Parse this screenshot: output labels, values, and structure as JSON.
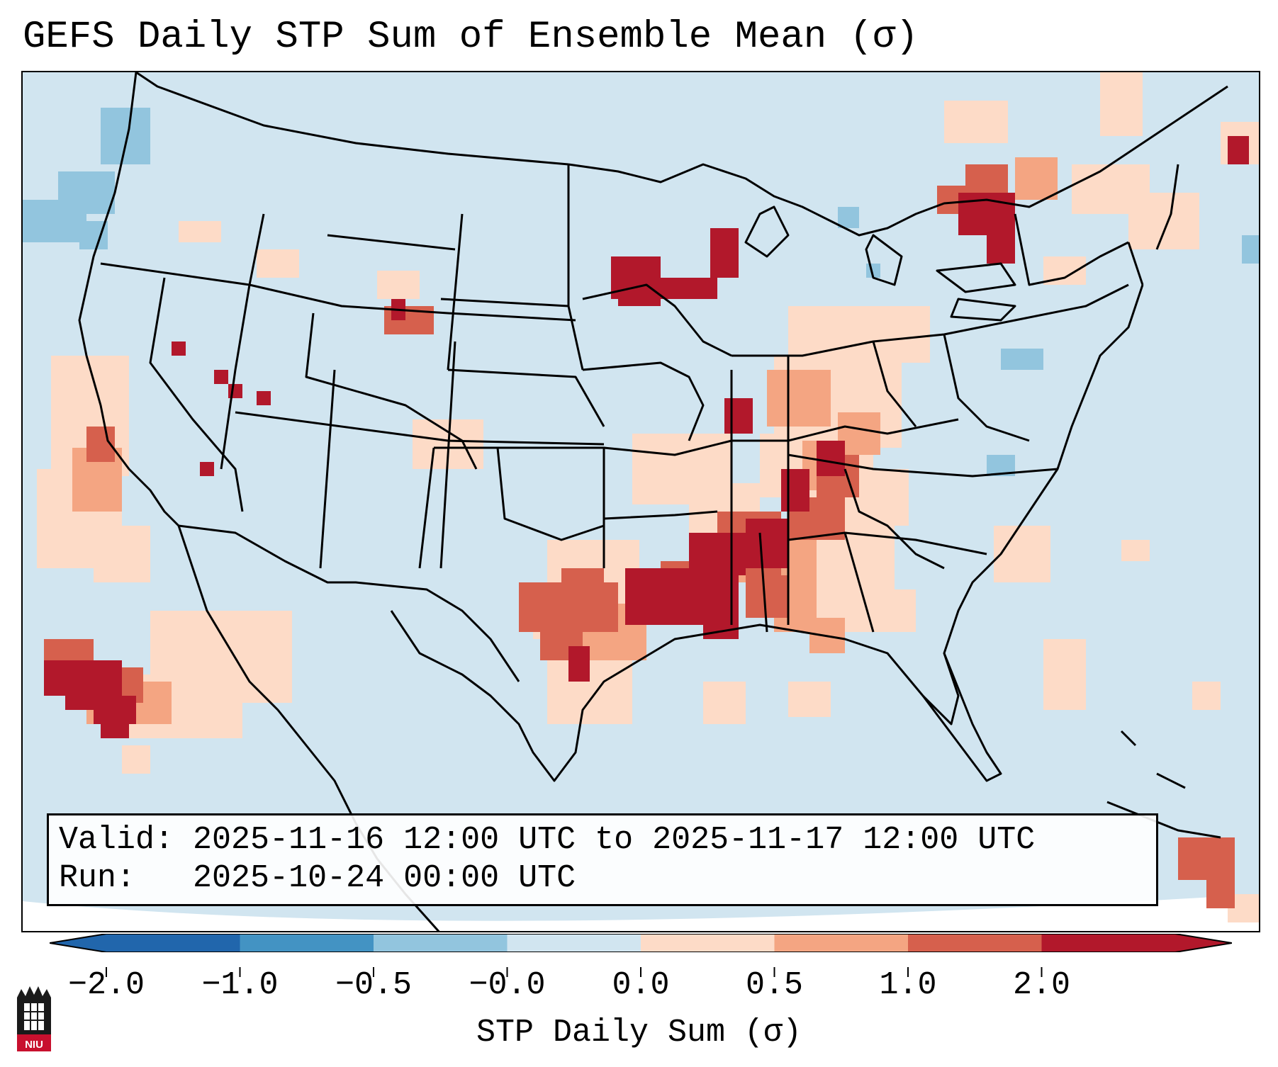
{
  "title": "GEFS Daily STP Sum of Ensemble Mean (σ)",
  "info": {
    "valid_label": "Valid:",
    "valid_value": "2025-11-16 12:00 UTC to 2025-11-17 12:00 UTC",
    "run_label": "Run:",
    "run_value": "2025-10-24 00:00 UTC"
  },
  "colorbar": {
    "label": "STP Daily Sum (σ)",
    "ticks": [
      "−2.0",
      "−1.0",
      "−0.5",
      "−0.0",
      "0.0",
      "0.5",
      "1.0",
      "2.0"
    ],
    "colors": [
      "#2166ac",
      "#4393c3",
      "#92c5de",
      "#d1e5f0",
      "#fddbc7",
      "#f4a582",
      "#d6604d",
      "#b2182b"
    ]
  },
  "logo": {
    "text": "NIU"
  }
}
